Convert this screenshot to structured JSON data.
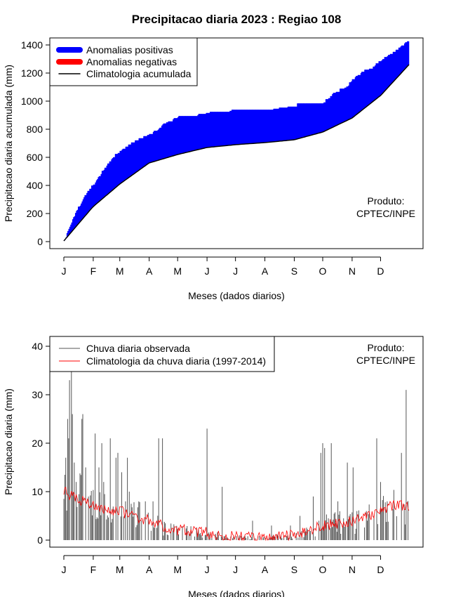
{
  "title": "Precipitacao diaria 2023 : Regiao 108",
  "colors": {
    "positive": "#0000ff",
    "negative": "#ff0000",
    "climatology_line": "#000000",
    "observed_bars": "#555555",
    "daily_climatology": "#ff0000"
  },
  "chart_data": [
    {
      "type": "area",
      "ylabel": "Precipitacao diaria acumulada (mm)",
      "xlabel": "Meses (dados diarios)",
      "xlim": [
        1,
        365
      ],
      "ylim": [
        0,
        1400
      ],
      "yticks": [
        0,
        200,
        400,
        600,
        800,
        1000,
        1200,
        1400
      ],
      "xtick_labels": [
        "J",
        "F",
        "M",
        "A",
        "M",
        "J",
        "J",
        "A",
        "S",
        "O",
        "N",
        "D"
      ],
      "xtick_days": [
        1,
        32,
        60,
        91,
        121,
        152,
        182,
        213,
        244,
        274,
        305,
        335
      ],
      "legend_position": "top-left",
      "legend": [
        "Anomalias positivas",
        "Anomalias negativas",
        "Climatologia acumulada"
      ],
      "annotation": [
        "Produto:",
        "CPTEC/INPE"
      ],
      "observed_cumulative": {
        "days": [
          1,
          10,
          18,
          25,
          32,
          40,
          48,
          55,
          60,
          70,
          80,
          91,
          100,
          105,
          121,
          140,
          152,
          170,
          182,
          200,
          213,
          230,
          244,
          255,
          274,
          285,
          300,
          305,
          315,
          325,
          335,
          345,
          355,
          365
        ],
        "values": [
          5,
          150,
          260,
          350,
          400,
          480,
          560,
          610,
          640,
          690,
          730,
          760,
          790,
          830,
          880,
          890,
          910,
          920,
          925,
          930,
          935,
          940,
          965,
          975,
          980,
          1050,
          1100,
          1150,
          1200,
          1230,
          1280,
          1330,
          1380,
          1430
        ]
      },
      "climatology_cumulative": {
        "days": [
          1,
          32,
          60,
          91,
          121,
          152,
          182,
          213,
          244,
          274,
          305,
          335,
          365
        ],
        "values": [
          5,
          250,
          410,
          560,
          620,
          670,
          690,
          705,
          725,
          780,
          880,
          1040,
          1260
        ]
      }
    },
    {
      "type": "bar",
      "ylabel": "Precipitacao diaria (mm)",
      "xlabel": "Meses (dados diarios)",
      "xlim": [
        1,
        365
      ],
      "ylim": [
        0,
        40
      ],
      "yticks": [
        0,
        10,
        20,
        30,
        40
      ],
      "xtick_labels": [
        "J",
        "F",
        "M",
        "A",
        "M",
        "J",
        "J",
        "A",
        "S",
        "O",
        "N",
        "D"
      ],
      "xtick_days": [
        1,
        32,
        60,
        91,
        121,
        152,
        182,
        213,
        244,
        274,
        305,
        335
      ],
      "legend_position": "top-left",
      "legend": [
        "Chuva diaria observada",
        "Climatologia da chuva diaria (1997-2014)"
      ],
      "annotation": [
        "Produto:",
        "CPTEC/INPE"
      ],
      "observed_daily_peaks": {
        "days": [
          3,
          5,
          6,
          7,
          9,
          10,
          12,
          14,
          20,
          21,
          24,
          27,
          34,
          38,
          41,
          43,
          50,
          56,
          58,
          62,
          66,
          68,
          70,
          80,
          87,
          95,
          101,
          105,
          152,
          168,
          200,
          220,
          240,
          250,
          264,
          270,
          272,
          274,
          276,
          283,
          290,
          300,
          306,
          310,
          320,
          331,
          335,
          342,
          357,
          362
        ],
        "values": [
          17,
          25,
          21,
          33,
          35,
          26,
          16,
          12,
          25,
          26,
          15,
          9,
          22,
          15,
          20,
          12,
          21,
          17,
          18,
          14,
          8,
          17,
          10,
          8,
          8,
          8,
          21,
          21,
          23,
          11,
          4,
          3,
          3,
          5,
          9,
          4,
          18,
          20,
          19,
          20,
          8,
          16,
          15,
          6,
          6,
          21,
          12,
          8,
          18,
          31
        ]
      },
      "climatology_daily": {
        "days": [
          1,
          10,
          20,
          32,
          45,
          60,
          75,
          91,
          105,
          121,
          135,
          152,
          165,
          182,
          200,
          213,
          230,
          244,
          260,
          274,
          290,
          305,
          320,
          335,
          350,
          365
        ],
        "values": [
          10,
          9,
          8,
          7,
          6,
          6,
          5,
          4,
          3,
          2,
          2,
          1.5,
          1,
          0.6,
          0.5,
          0.5,
          0.8,
          1,
          2,
          3,
          3.5,
          4,
          5,
          6,
          7.5,
          7
        ]
      }
    }
  ]
}
